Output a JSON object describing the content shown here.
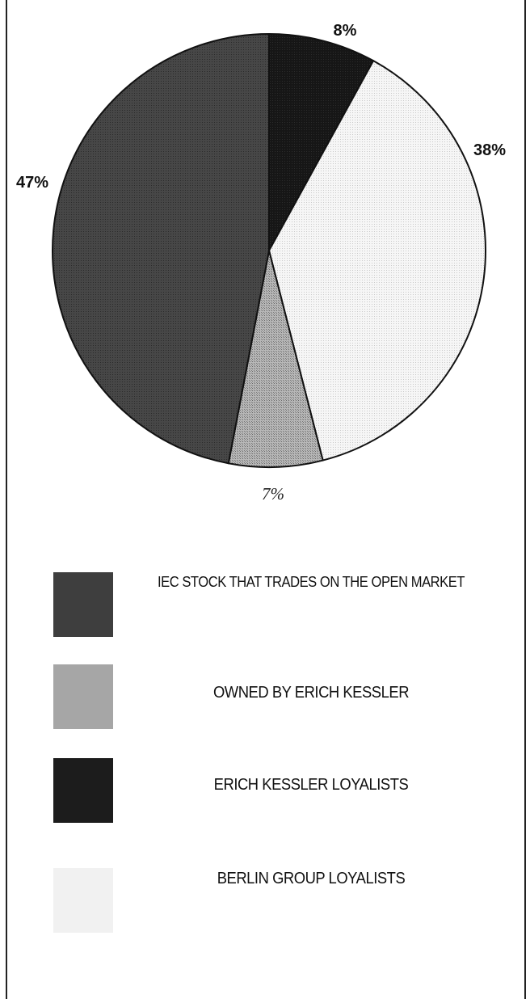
{
  "chart_data": {
    "type": "pie",
    "slices": [
      {
        "label": "ERICH KESSLER LOYALISTS",
        "value": 8,
        "display": "8%",
        "color": "#1a1a1a"
      },
      {
        "label": "BERLIN GROUP LOYALISTS",
        "value": 38,
        "display": "38%",
        "color": "#f2f2f2"
      },
      {
        "label": "OWNED BY ERICH KESSLER",
        "value": 7,
        "display": "7%",
        "color": "#a8a8a8"
      },
      {
        "label": "IEC STOCK THAT TRADES ON THE OPEN MARKET",
        "value": 47,
        "display": "47%",
        "color": "#3c3c3c"
      }
    ],
    "start_angle": "12 o'clock",
    "direction": "clockwise",
    "title": ""
  },
  "legend": {
    "items": [
      {
        "label": "IEC STOCK THAT TRADES ON THE OPEN MARKET",
        "color": "#3c3c3c"
      },
      {
        "label": "OWNED BY ERICH KESSLER",
        "color": "#a8a8a8"
      },
      {
        "label": "ERICH KESSLER LOYALISTS",
        "color": "#1a1a1a"
      },
      {
        "label": "BERLIN GROUP LOYALISTS",
        "color": "#f2f2f2"
      }
    ]
  }
}
